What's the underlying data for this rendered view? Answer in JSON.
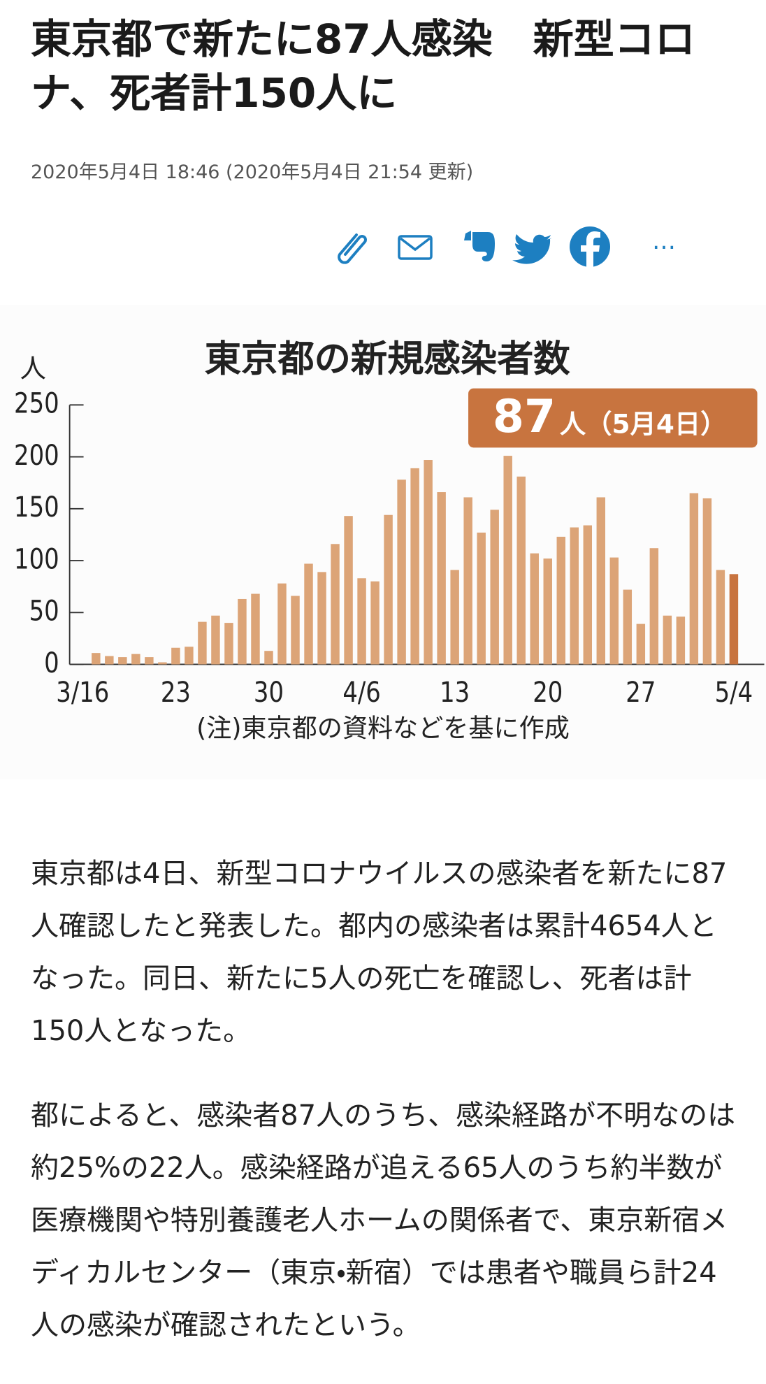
{
  "header": {
    "title": "東京都で新たに87人感染　新型コロナ、死者計150人に",
    "date": "2020年5月4日 18:46 (2020年5月4日 21:54 更新)"
  },
  "share": {
    "more": "…"
  },
  "chart_data": {
    "type": "bar",
    "title": "東京都の新規感染者数",
    "y_label": "人",
    "note": "(注)東京都の資料などを基に作成",
    "annotation": {
      "number": "87",
      "text": "人（5月4日）"
    },
    "categories": [
      "3/16",
      null,
      null,
      null,
      null,
      null,
      null,
      "23",
      null,
      null,
      null,
      null,
      null,
      null,
      "30",
      null,
      null,
      null,
      null,
      null,
      null,
      "4/6",
      null,
      null,
      null,
      null,
      null,
      null,
      "13",
      null,
      null,
      null,
      null,
      null,
      null,
      "20",
      null,
      null,
      null,
      null,
      null,
      null,
      "27",
      null,
      null,
      null,
      null,
      null,
      null,
      "5/4"
    ],
    "values": [
      0,
      11,
      8,
      7,
      10,
      7,
      2,
      16,
      17,
      41,
      47,
      40,
      63,
      68,
      13,
      78,
      66,
      97,
      89,
      116,
      143,
      83,
      80,
      144,
      178,
      189,
      197,
      166,
      91,
      161,
      127,
      149,
      201,
      181,
      107,
      102,
      123,
      132,
      134,
      161,
      103,
      72,
      39,
      112,
      47,
      46,
      165,
      160,
      91,
      87
    ],
    "color": "#dca477",
    "last_color": "#c8743f",
    "ylim": [
      0,
      250
    ],
    "yticks": [
      0,
      50,
      100,
      150,
      200,
      250
    ]
  },
  "article": {
    "paragraphs": [
      "東京都は4日、新型コロナウイルスの感染者を新たに87人確認したと発表した。都内の感染者は累計4654人となった。同日、新たに5人の死亡を確認し、死者は計150人となった。",
      "都によると、感染者87人のうち、感染経路が不明なのは約25%の22人。感染経路が追える65人のうち約半数が医療機関や特別養護老人ホームの関係者で、東京新宿メディカルセンター（東京・新宿）では患者や職員ら計24人の感染が確認されたという。"
    ]
  }
}
